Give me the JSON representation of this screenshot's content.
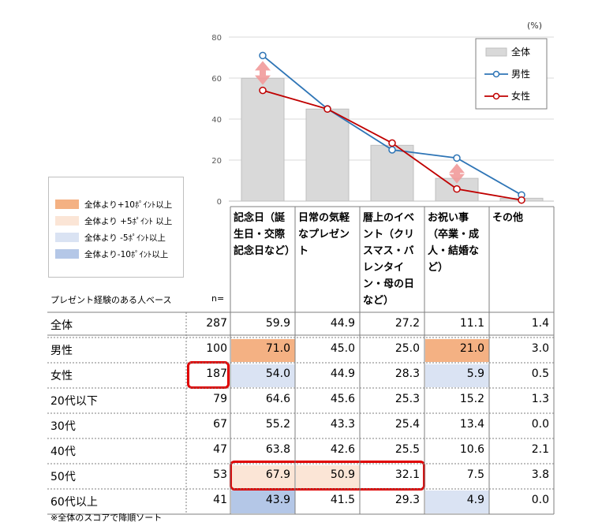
{
  "chart_data": {
    "type": "bar+line",
    "unit_label": "(%)",
    "categories": [
      "記念日（誕生日・交際記念日など）",
      "日常の気軽なプレゼント",
      "暦上のイベント（クリスマス・バレンタイン・母の日など）",
      "お祝い事（卒業・成人・結婚など）",
      "その他"
    ],
    "ylim": [
      0,
      80
    ],
    "yticks": [
      0,
      20,
      40,
      60,
      80
    ],
    "series": [
      {
        "name": "全体",
        "kind": "bar",
        "values": [
          59.9,
          44.9,
          27.2,
          11.1,
          1.4
        ],
        "color": "#d9d9d9"
      },
      {
        "name": "男性",
        "kind": "line",
        "values": [
          71.0,
          45.0,
          25.0,
          21.0,
          3.0
        ],
        "color": "#2e75b6"
      },
      {
        "name": "女性",
        "kind": "line",
        "values": [
          54.0,
          44.9,
          28.3,
          5.9,
          0.5
        ],
        "color": "#c00000"
      }
    ],
    "arrows_between": [
      0,
      3
    ],
    "legend_position": "top-right"
  },
  "shade_legend": [
    {
      "label": "全体より+10ﾎﾟｲﾝﾄ以上",
      "color": "#f4b183"
    },
    {
      "label": "全体より +5ﾎﾟｲﾝﾄ 以上",
      "color": "#fbe5d6"
    },
    {
      "label": "全体より -5ﾎﾟｲﾝﾄ以上",
      "color": "#dae3f3"
    },
    {
      "label": "全体より-10ﾎﾟｲﾝﾄ以上",
      "color": "#b4c7e7"
    }
  ],
  "table": {
    "base_label": "プレゼント経験のある人ベース",
    "n_header": "n=",
    "columns": [
      "記念日（誕生日・交際記念日など）",
      "日常の気軽なプレゼント",
      "暦上のイベント（クリスマス・バレンタイン・母の日など）",
      "お祝い事（卒業・成人・結婚など）",
      "その他"
    ],
    "rows": [
      {
        "label": "全体",
        "n": "287",
        "values": [
          "59.9",
          "44.9",
          "27.2",
          "11.1",
          "1.4"
        ],
        "shade": [
          null,
          null,
          null,
          null,
          null
        ]
      },
      {
        "label": "男性",
        "n": "100",
        "values": [
          "71.0",
          "45.0",
          "25.0",
          "21.0",
          "3.0"
        ],
        "shade": [
          "+10",
          null,
          null,
          "+10",
          null
        ]
      },
      {
        "label": "女性",
        "n": "187",
        "values": [
          "54.0",
          "44.9",
          "28.3",
          "5.9",
          "0.5"
        ],
        "shade": [
          "-5",
          null,
          null,
          "-5",
          null
        ]
      },
      {
        "label": "20代以下",
        "n": "79",
        "values": [
          "64.6",
          "45.6",
          "25.3",
          "15.2",
          "1.3"
        ],
        "shade": [
          null,
          null,
          null,
          null,
          null
        ]
      },
      {
        "label": "30代",
        "n": "67",
        "values": [
          "55.2",
          "43.3",
          "25.4",
          "13.4",
          "0.0"
        ],
        "shade": [
          null,
          null,
          null,
          null,
          null
        ]
      },
      {
        "label": "40代",
        "n": "47",
        "values": [
          "63.8",
          "42.6",
          "25.5",
          "10.6",
          "2.1"
        ],
        "shade": [
          null,
          null,
          null,
          null,
          null
        ]
      },
      {
        "label": "50代",
        "n": "53",
        "values": [
          "67.9",
          "50.9",
          "32.1",
          "7.5",
          "3.8"
        ],
        "shade": [
          "+5",
          "+5",
          null,
          null,
          null
        ]
      },
      {
        "label": "60代以上",
        "n": "41",
        "values": [
          "43.9",
          "41.5",
          "29.3",
          "4.9",
          "0.0"
        ],
        "shade": [
          "-10",
          null,
          null,
          "-5",
          null
        ]
      }
    ],
    "footnote": "※全体のスコアで降順ソート"
  }
}
